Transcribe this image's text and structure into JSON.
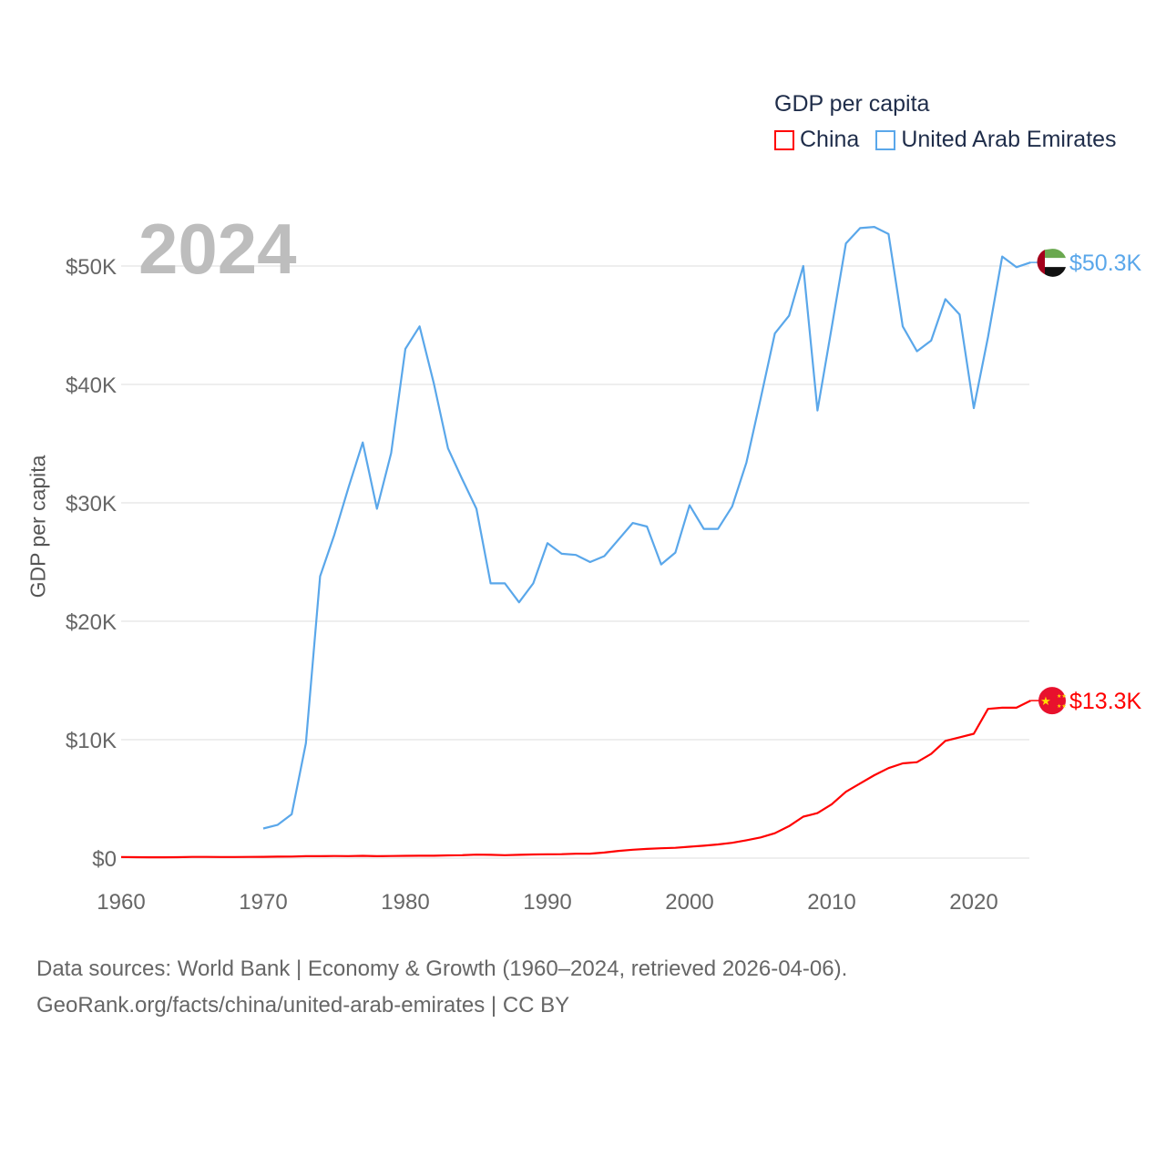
{
  "legend": {
    "title": "GDP per capita",
    "items": [
      {
        "name": "China",
        "color": "#ff0000"
      },
      {
        "name": "United Arab Emirates",
        "color": "#5aa7ea"
      }
    ]
  },
  "year_label": "2024",
  "footer": {
    "line1": "Data sources: World Bank | Economy & Growth (1960–2024, retrieved 2026-04-06).",
    "line2": "GeoRank.org/facts/china/united-arab-emirates | CC BY"
  },
  "chart_data": {
    "type": "line",
    "title": "GDP per capita",
    "xlabel": "",
    "ylabel": "GDP per capita",
    "xlim": [
      1960,
      2024
    ],
    "ylim": [
      0,
      53500
    ],
    "x_ticks": [
      1960,
      1970,
      1980,
      1990,
      2000,
      2010,
      2020
    ],
    "y_ticks": [
      {
        "v": 0,
        "label": "$0"
      },
      {
        "v": 10000,
        "label": "$10K"
      },
      {
        "v": 20000,
        "label": "$20K"
      },
      {
        "v": 30000,
        "label": "$30K"
      },
      {
        "v": 40000,
        "label": "$40K"
      },
      {
        "v": 50000,
        "label": "$50K"
      }
    ],
    "grid": true,
    "legend_position": "top-right",
    "series": [
      {
        "name": "China",
        "color": "#ff0000",
        "end_label": "$13.3K",
        "start": 1960,
        "values": [
          90,
          80,
          70,
          70,
          80,
          100,
          100,
          90,
          90,
          100,
          110,
          120,
          130,
          160,
          160,
          180,
          170,
          190,
          160,
          180,
          190,
          200,
          200,
          230,
          250,
          290,
          280,
          250,
          280,
          310,
          320,
          330,
          370,
          380,
          470,
          610,
          710,
          780,
          830,
          870,
          960,
          1050,
          1150,
          1290,
          1510,
          1750,
          2100,
          2700,
          3500,
          3800,
          4550,
          5600,
          6300,
          7000,
          7600,
          8000,
          8100,
          8800,
          9900,
          10200,
          10500,
          12600,
          12700,
          12700,
          13300
        ]
      },
      {
        "name": "United Arab Emirates",
        "color": "#5aa7ea",
        "end_label": "$50.3K",
        "start": 1970,
        "values": [
          2500,
          2800,
          3700,
          9700,
          23800,
          27300,
          31300,
          35100,
          29500,
          34200,
          43000,
          44900,
          40100,
          34600,
          32000,
          29500,
          23200,
          23200,
          21600,
          23200,
          26600,
          25700,
          25600,
          25000,
          25500,
          26900,
          28300,
          28000,
          24800,
          25800,
          29800,
          27800,
          27800,
          29700,
          33400,
          38800,
          44300,
          45800,
          50000,
          37800,
          44800,
          51900,
          53200,
          53300,
          52700,
          44900,
          42800,
          43700,
          47200,
          45900,
          38000,
          44000,
          50800,
          49900,
          50300
        ]
      }
    ]
  }
}
